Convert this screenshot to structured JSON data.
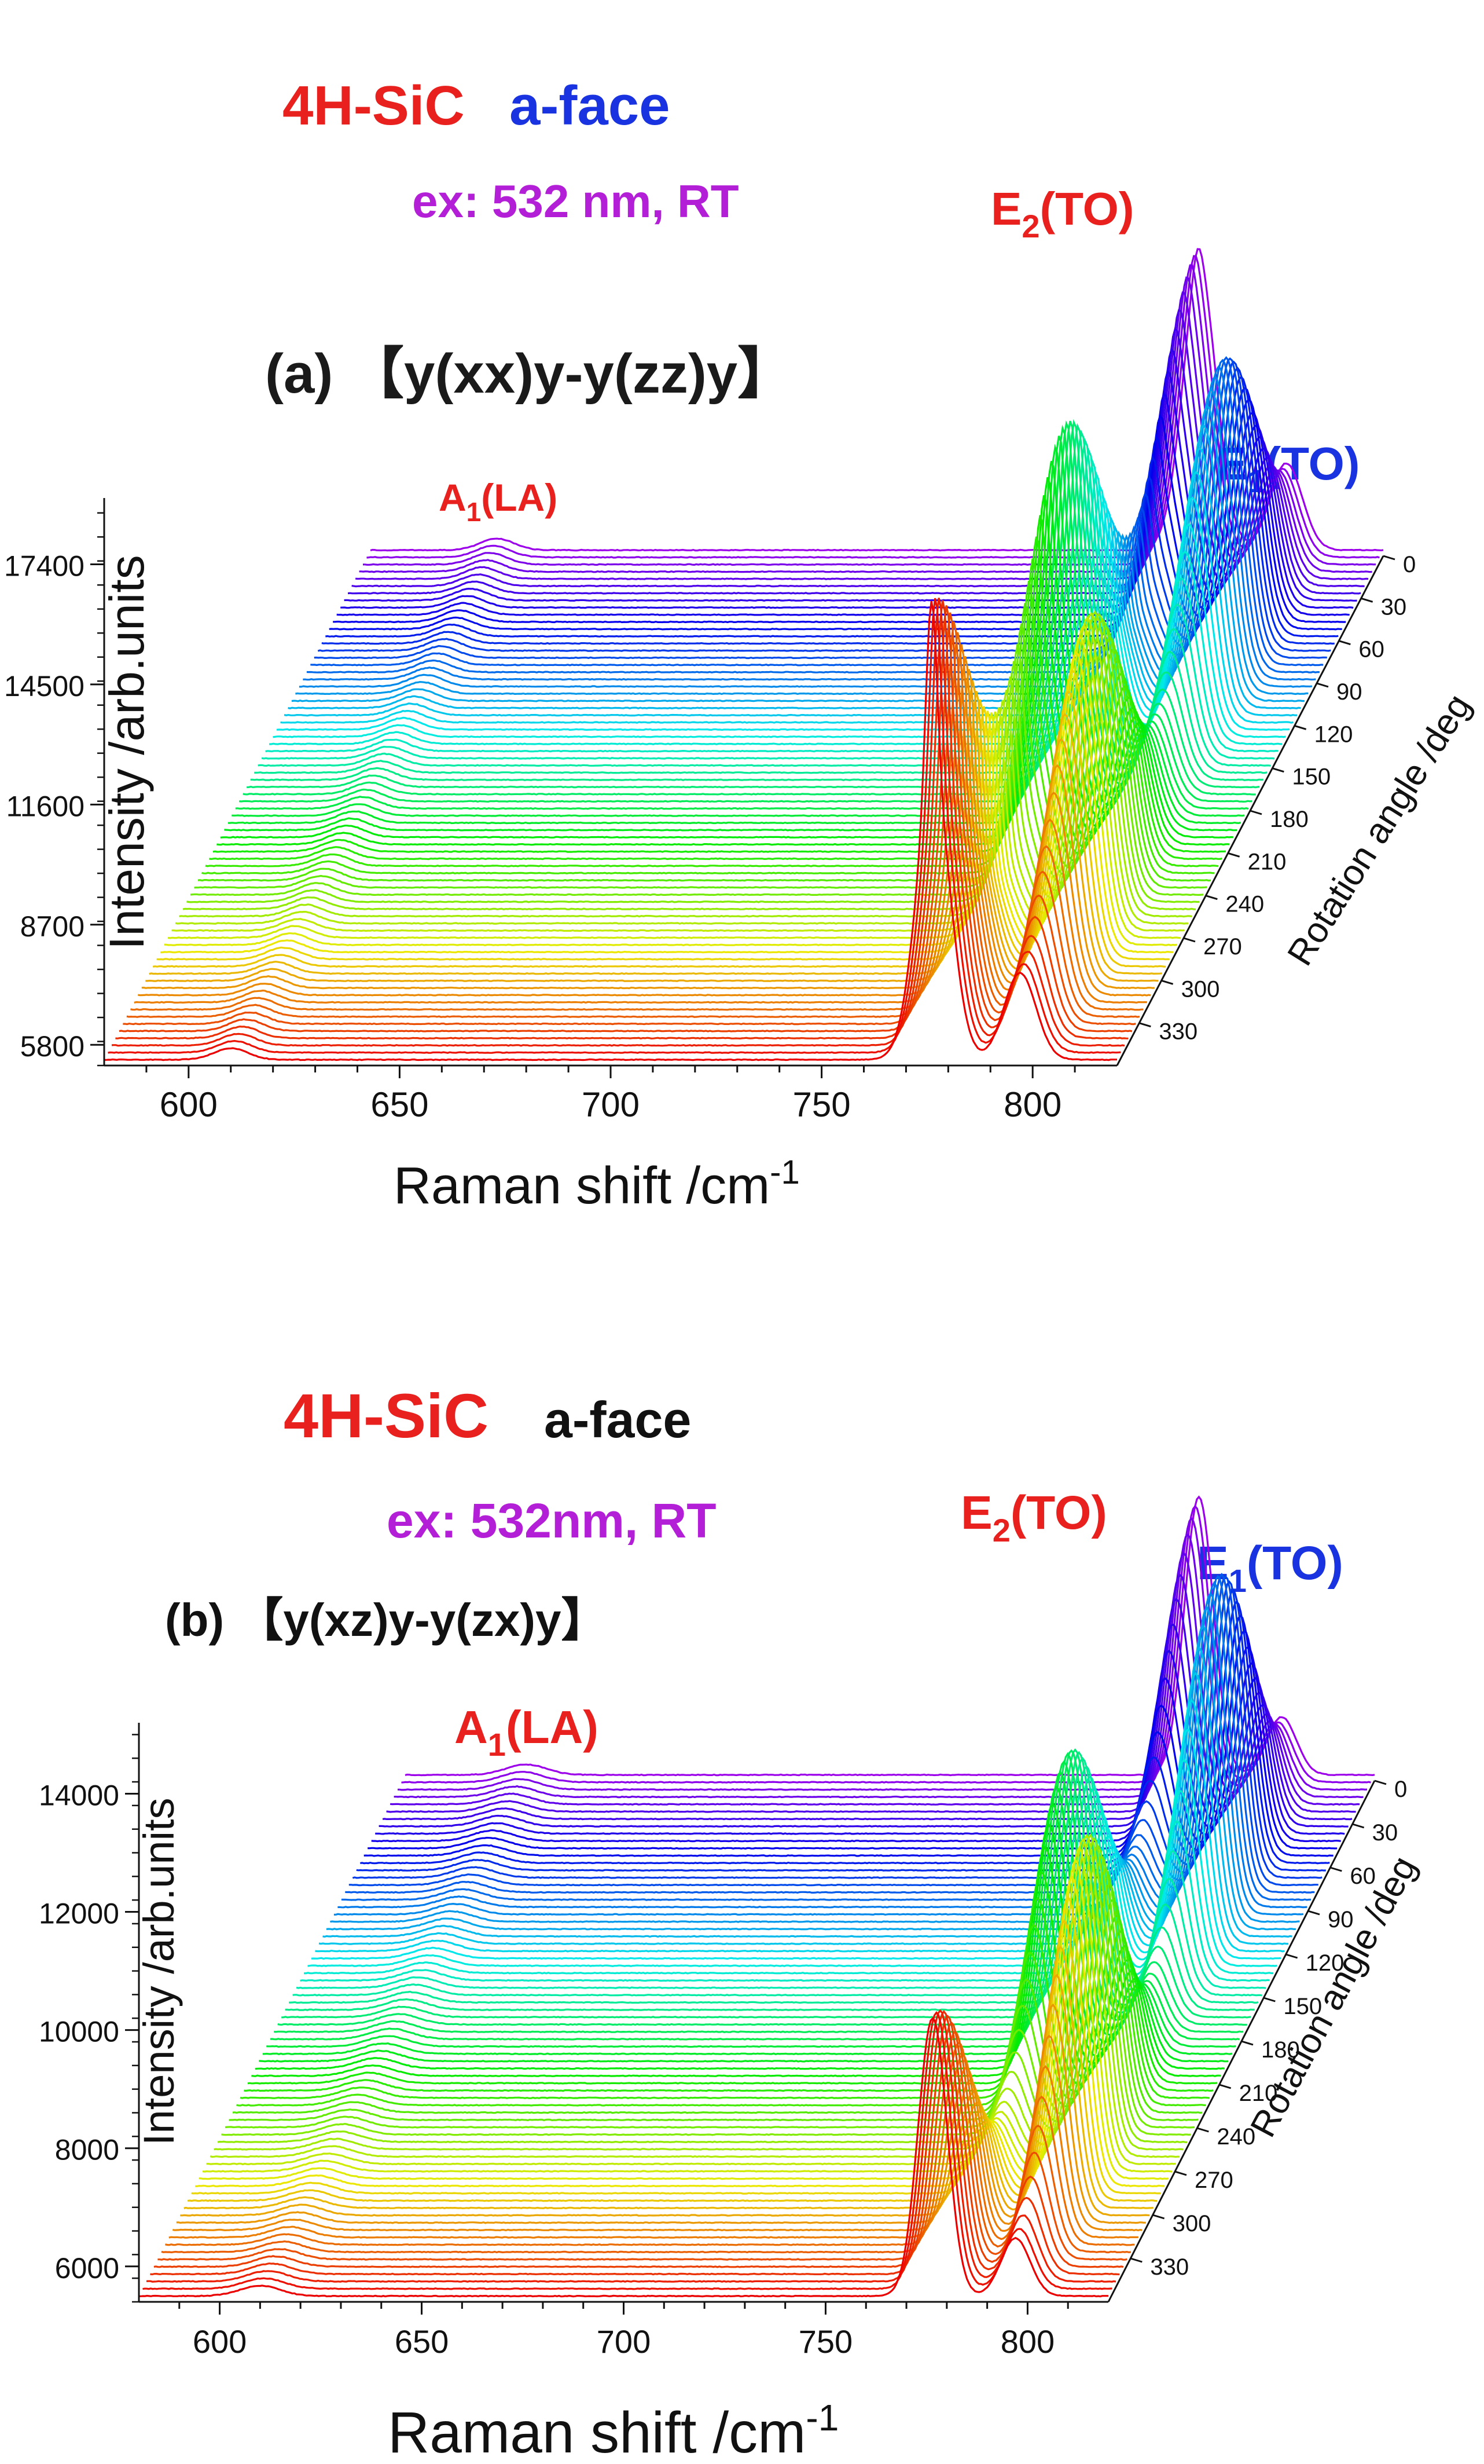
{
  "chart_data": [
    {
      "type": "line",
      "panel_label": "(a) 【y(xx)y-y(zz)y】",
      "header": {
        "material": "4H-SiC",
        "face": "a-face",
        "excitation": "ex: 532 nm,  RT"
      },
      "xlabel": "Raman shift /cm",
      "xlabel_sup": "-1",
      "ylabel": "Intensity /arb.units",
      "zlabel": "Rotation angle /deg",
      "x_ticks": [
        "600",
        "650",
        "700",
        "750",
        "800"
      ],
      "xlim": [
        580,
        820
      ],
      "y_ticks": [
        "5800",
        "8700",
        "11600",
        "14500",
        "17400"
      ],
      "angle_ticks": [
        "0",
        "30",
        "60",
        "90",
        "120",
        "150",
        "180",
        "210",
        "240",
        "270",
        "300",
        "330"
      ],
      "series_count": 72,
      "peak_labels": [
        {
          "main": "A",
          "sub": "1",
          "tail": "(LA)",
          "color": "#e8201e"
        },
        {
          "main": "E",
          "sub": "2",
          "tail": "(TO)",
          "color": "#e8201e"
        },
        {
          "main": "E",
          "sub": "1",
          "tail": "(TO)",
          "color": "#1a33e0"
        }
      ],
      "colors": {
        "material": "#e8201e",
        "face": "#1a33e0",
        "excitation": "#b21fd6",
        "panel": "#1a1a1a"
      }
    },
    {
      "type": "line",
      "panel_label": "(b) 【y(xz)y-y(zx)y】",
      "header": {
        "material": "4H-SiC",
        "face": "a-face",
        "excitation": "ex: 532nm,  RT"
      },
      "xlabel": "Raman shift /cm",
      "xlabel_sup": "-1",
      "ylabel": "Intensity /arb.units",
      "zlabel": "Rotation angle /deg",
      "x_ticks": [
        "600",
        "650",
        "700",
        "750",
        "800"
      ],
      "xlim": [
        580,
        820
      ],
      "y_ticks": [
        "6000",
        "8000",
        "10000",
        "12000",
        "14000"
      ],
      "angle_ticks": [
        "0",
        "30",
        "60",
        "90",
        "120",
        "150",
        "180",
        "210",
        "240",
        "270",
        "300",
        "330"
      ],
      "series_count": 72,
      "peak_labels": [
        {
          "main": "A",
          "sub": "1",
          "tail": "(LA)",
          "color": "#e8201e"
        },
        {
          "main": "E",
          "sub": "2",
          "tail": "(TO)",
          "color": "#e8201e"
        },
        {
          "main": "E",
          "sub": "1",
          "tail": "(TO)",
          "color": "#1a33e0"
        }
      ],
      "colors": {
        "material": "#e8201e",
        "face": "#111111",
        "excitation": "#b21fd6",
        "panel": "#111111"
      }
    }
  ]
}
